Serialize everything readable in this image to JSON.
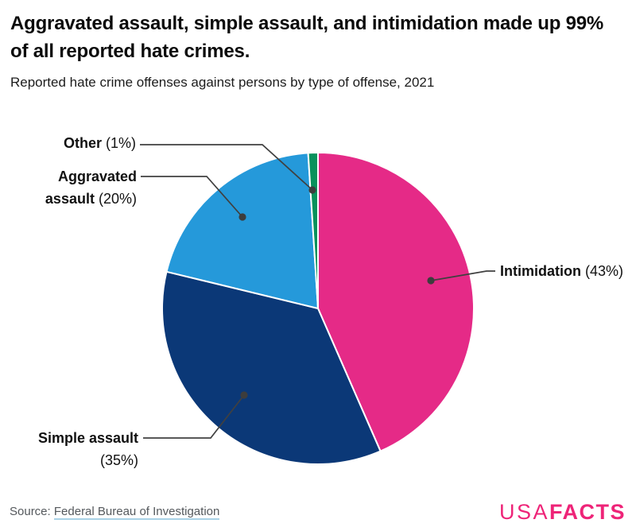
{
  "header": {
    "title": "Aggravated assault, simple assault, and intimidation made up 99% of all reported hate crimes.",
    "subtitle": "Reported hate crime offenses against persons by type of offense, 2021"
  },
  "chart_data": {
    "type": "pie",
    "title": "Reported hate crime offenses against persons by type of offense, 2021",
    "categories": [
      "Intimidation",
      "Simple assault",
      "Aggravated assault",
      "Other"
    ],
    "values": [
      43,
      35,
      20,
      1
    ],
    "unit": "percent of reported hate crime offenses against persons",
    "colors": [
      "#e52a87",
      "#0b3877",
      "#2599da",
      "#08915c"
    ],
    "start_angle_deg": 0,
    "direction": "clockwise",
    "slice_border_color": "#ffffff",
    "legend_position": "none",
    "callouts": [
      {
        "name": "Other",
        "pct": "(1%)"
      },
      {
        "name": "Aggravated assault",
        "pct": "(20%)"
      },
      {
        "name": "Intimidation",
        "pct": "(43%)"
      },
      {
        "name": "Simple assault",
        "pct": "(35%)"
      }
    ]
  },
  "footer": {
    "source_prefix": "Source: ",
    "source_link": "Federal Bureau of Investigation",
    "logo": {
      "part1": "USA",
      "part2": "FACTS",
      "color": "#ee2478"
    }
  }
}
